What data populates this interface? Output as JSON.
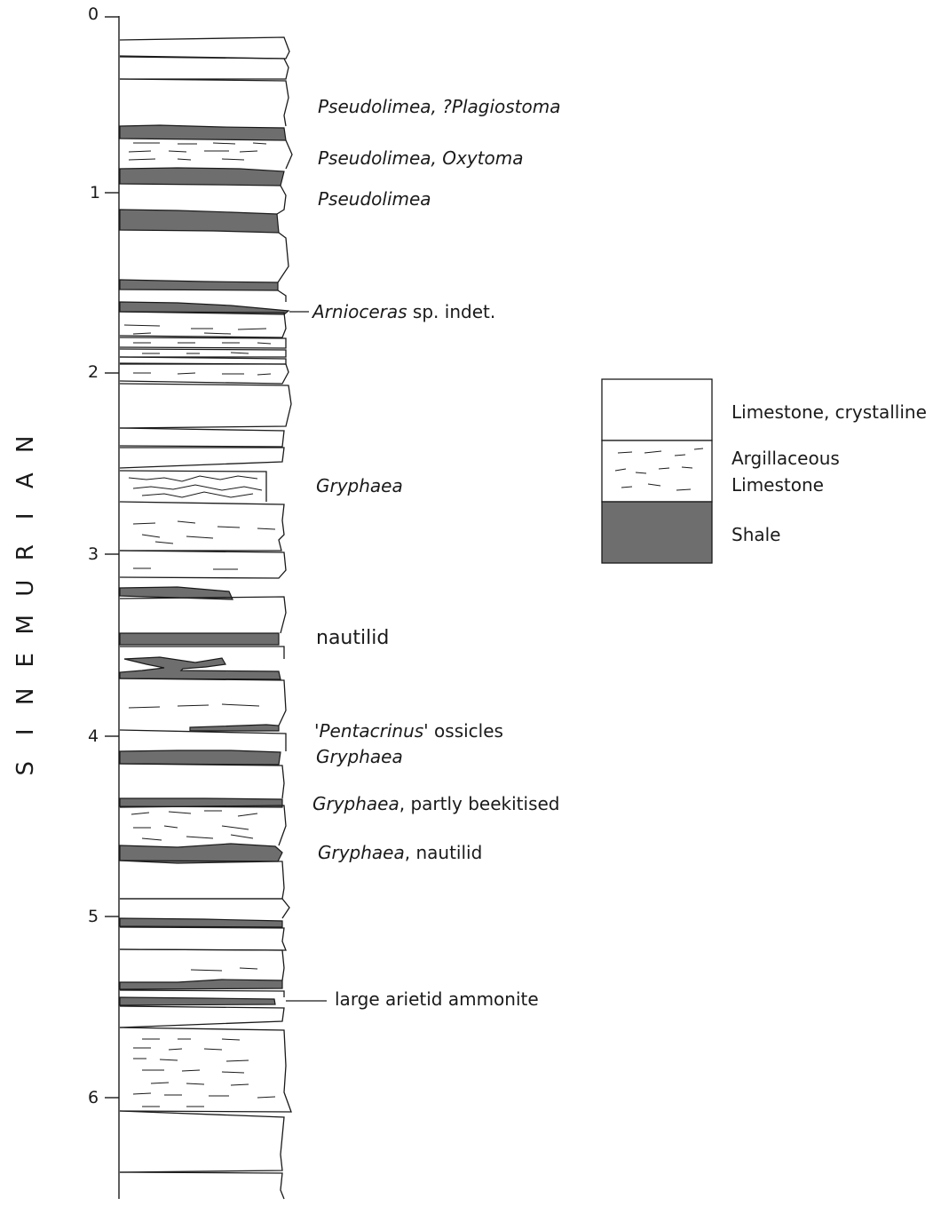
{
  "depth_scale": [
    "0",
    "1",
    "2",
    "3",
    "4",
    "5",
    "6"
  ],
  "stage": "SINEMURIAN",
  "annotations": [
    {
      "italic": "Pseudolimea, ?Plagiostoma",
      "plain": ""
    },
    {
      "italic": "Pseudolimea, Oxytoma",
      "plain": ""
    },
    {
      "italic": "Pseudolimea",
      "plain": ""
    },
    {
      "italic": "Arnioceras",
      "plain": " sp. indet."
    },
    {
      "italic": "Gryphaea",
      "plain": ""
    },
    {
      "italic": "",
      "plain": "nautilid"
    },
    {
      "prefix": "'",
      "italic": "Pentacrinus'",
      "plain": " ossicles"
    },
    {
      "italic": "Gryphaea",
      "plain": ""
    },
    {
      "italic": "Gryphaea",
      "plain": ", partly beekitised"
    },
    {
      "italic": "Gryphaea",
      "plain": ", nautilid"
    },
    {
      "italic": "",
      "plain": "large arietid ammonite"
    }
  ],
  "legend": [
    {
      "label": "Limestone, crystalline",
      "pattern": "white"
    },
    {
      "label": "Argillaceous\nLimestone",
      "pattern": "dashed"
    },
    {
      "label": "Shale",
      "pattern": "grey"
    }
  ],
  "colors": {
    "shale": "#6e6e6e",
    "line": "#1a1a1a",
    "background": "#ffffff"
  }
}
